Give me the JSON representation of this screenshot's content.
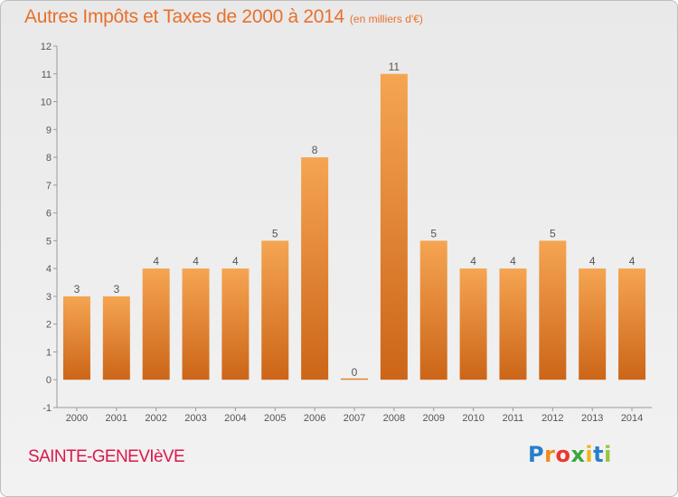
{
  "title": "Autres Impôts et Taxes de 2000 à 2014",
  "unit_label": "(en milliers d'€)",
  "commune": "SAINTE-GENEVIèVE",
  "logo": {
    "text": "Proxiti",
    "letters": [
      "P",
      "r",
      "o",
      "x",
      "i",
      "t",
      "i"
    ]
  },
  "colors": {
    "title": "#e8702a",
    "commune": "#d8194c",
    "bar_light": "#f5a552",
    "bar_dark": "#cc6518"
  },
  "chart_data": {
    "type": "bar",
    "title": "Autres Impôts et Taxes de 2000 à 2014",
    "subtitle": "(en milliers d'€)",
    "categories": [
      "2000",
      "2001",
      "2002",
      "2003",
      "2004",
      "2005",
      "2006",
      "2007",
      "2008",
      "2009",
      "2010",
      "2011",
      "2012",
      "2013",
      "2014"
    ],
    "values": [
      3,
      3,
      4,
      4,
      4,
      5,
      8,
      0,
      11,
      5,
      4,
      4,
      5,
      4,
      4
    ],
    "data_labels": [
      "3",
      "3",
      "4",
      "4",
      "4",
      "5",
      "8",
      "0",
      "11",
      "5",
      "4",
      "4",
      "5",
      "4",
      "4"
    ],
    "ylim": [
      -1,
      12
    ],
    "yticks": [
      "-1",
      "0",
      "1",
      "2",
      "3",
      "4",
      "5",
      "6",
      "7",
      "8",
      "9",
      "10",
      "11",
      "12"
    ],
    "grid": false,
    "legend": "none"
  }
}
